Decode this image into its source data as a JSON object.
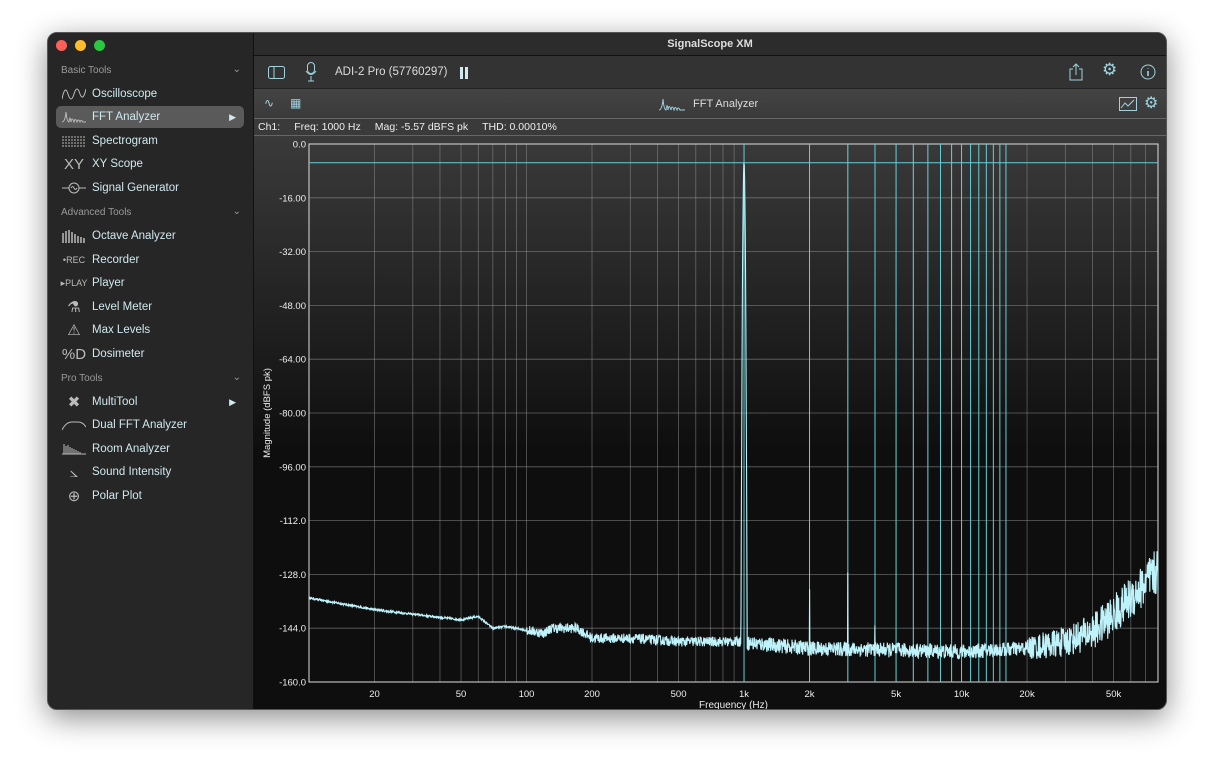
{
  "window": {
    "title": "SignalScope XM"
  },
  "sidebar": {
    "sections": [
      {
        "label": "Basic Tools",
        "items": [
          {
            "label": "Oscilloscope",
            "icon": "oscilloscope-wave-icon"
          },
          {
            "label": "FFT Analyzer",
            "icon": "fft-icon",
            "selected": true,
            "arrow": true
          },
          {
            "label": "Spectrogram",
            "icon": "spectrogram-icon"
          },
          {
            "label": "XY Scope",
            "icon": "xy-icon",
            "glyph": "XY"
          },
          {
            "label": "Signal Generator",
            "icon": "signal-generator-icon"
          }
        ]
      },
      {
        "label": "Advanced Tools",
        "items": [
          {
            "label": "Octave Analyzer",
            "icon": "octave-bars-icon"
          },
          {
            "label": "Recorder",
            "icon": "rec-icon",
            "glyph": "•REC"
          },
          {
            "label": "Player",
            "icon": "play-icon",
            "glyph": "▸PLAY"
          },
          {
            "label": "Level Meter",
            "icon": "level-meter-icon",
            "glyph": "⚗"
          },
          {
            "label": "Max Levels",
            "icon": "warning-triangle-icon",
            "glyph": "⚠"
          },
          {
            "label": "Dosimeter",
            "icon": "dosimeter-icon",
            "glyph": "%D"
          }
        ]
      },
      {
        "label": "Pro Tools",
        "items": [
          {
            "label": "MultiTool",
            "icon": "multitool-icon",
            "glyph": "✖",
            "arrow": true
          },
          {
            "label": "Dual FFT Analyzer",
            "icon": "dual-fft-icon"
          },
          {
            "label": "Room Analyzer",
            "icon": "room-analyzer-icon"
          },
          {
            "label": "Sound Intensity",
            "icon": "sound-intensity-icon",
            "glyph": "⦣"
          },
          {
            "label": "Polar Plot",
            "icon": "polar-plot-icon",
            "glyph": "⊕"
          }
        ]
      }
    ]
  },
  "toolbar": {
    "device": "ADI-2 Pro (57760297)"
  },
  "analyzer": {
    "title": "FFT Analyzer",
    "status": {
      "channel": "Ch1:",
      "freq": "Freq: 1000 Hz",
      "mag": "Mag: -5.57 dBFS pk",
      "thd": "THD: 0.00010%"
    }
  },
  "colors": {
    "trace": "#bff3fb",
    "marker": "#5fd0d8",
    "grid": "#9a9a9a"
  },
  "chart_data": {
    "type": "line",
    "xlabel": "Frequency (Hz)",
    "ylabel": "Magnitude (dBFS pk)",
    "xscale": "log",
    "xlim": [
      10,
      80000
    ],
    "ylim": [
      -160,
      0
    ],
    "xticks": [
      {
        "v": 20,
        "l": "20"
      },
      {
        "v": 50,
        "l": "50"
      },
      {
        "v": 100,
        "l": "100"
      },
      {
        "v": 200,
        "l": "200"
      },
      {
        "v": 500,
        "l": "500"
      },
      {
        "v": 1000,
        "l": "1k"
      },
      {
        "v": 2000,
        "l": "2k"
      },
      {
        "v": 5000,
        "l": "5k"
      },
      {
        "v": 10000,
        "l": "10k"
      },
      {
        "v": 20000,
        "l": "20k"
      },
      {
        "v": 50000,
        "l": "50k"
      }
    ],
    "yticks": [
      {
        "v": 0,
        "l": "0.0"
      },
      {
        "v": -16,
        "l": "-16.00"
      },
      {
        "v": -32,
        "l": "-32.00"
      },
      {
        "v": -48,
        "l": "-48.00"
      },
      {
        "v": -64,
        "l": "-64.00"
      },
      {
        "v": -80,
        "l": "-80.00"
      },
      {
        "v": -96,
        "l": "-96.00"
      },
      {
        "v": -112,
        "l": "-112.0"
      },
      {
        "v": -128,
        "l": "-128.0"
      },
      {
        "v": -144,
        "l": "-144.0"
      },
      {
        "v": -160,
        "l": "-160.0"
      }
    ],
    "grid": true,
    "peak_marker_db": -5.57,
    "harmonic_markers_hz": [
      1000,
      2000,
      3000,
      4000,
      5000,
      6000,
      7000,
      8000,
      9000,
      10000,
      11000,
      12000,
      13000,
      14000,
      15000,
      16000
    ],
    "noise_floor": [
      [
        10,
        -135
      ],
      [
        20,
        -138.5
      ],
      [
        50,
        -141.5
      ],
      [
        60,
        -140.5
      ],
      [
        70,
        -144
      ],
      [
        80,
        -143.5
      ],
      [
        120,
        -145.5
      ],
      [
        130,
        -144
      ],
      [
        170,
        -144
      ],
      [
        200,
        -147
      ],
      [
        300,
        -147
      ],
      [
        500,
        -148
      ],
      [
        900,
        -148
      ],
      [
        2000,
        -150
      ],
      [
        5000,
        -150.5
      ],
      [
        10000,
        -151
      ],
      [
        20000,
        -150
      ],
      [
        30000,
        -148
      ],
      [
        40000,
        -145
      ],
      [
        50000,
        -140
      ],
      [
        60000,
        -135
      ],
      [
        80000,
        -127
      ]
    ],
    "peaks": [
      [
        1000,
        -5.57
      ],
      [
        2000,
        -131
      ],
      [
        3000,
        -127
      ],
      [
        4000,
        -139
      ]
    ]
  }
}
